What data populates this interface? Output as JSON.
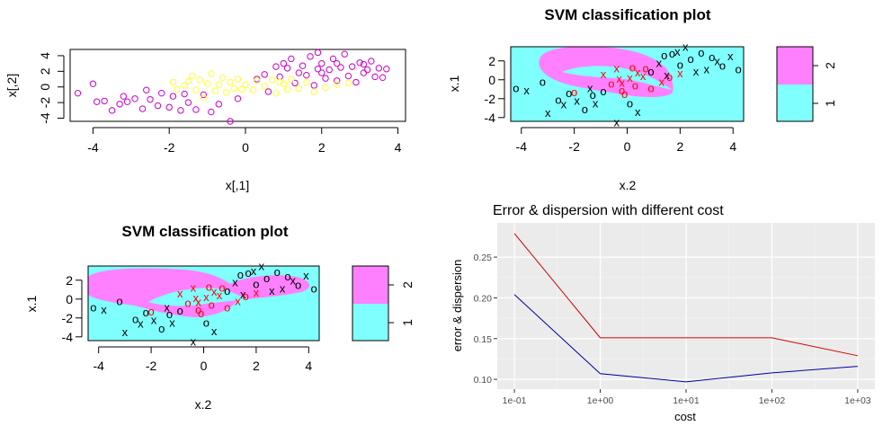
{
  "chart_data": [
    {
      "type": "scatter",
      "xlabel": "x[,1]",
      "ylabel": "x[,2]",
      "xlim": [
        -4.6,
        4.2
      ],
      "ylim": [
        -4.4,
        4.8
      ],
      "xticks": [
        "-4",
        "-2",
        "0",
        "2",
        "4"
      ],
      "yticks": [
        "-4",
        "-2",
        "0",
        "2",
        "4"
      ],
      "colors": {
        "class_1": "#cc00cc",
        "class_2": "#ffff33"
      },
      "series": [
        {
          "name": "",
          "marker": "circle",
          "color": "#cc00cc",
          "points": [
            [
              -4.4,
              -0.8
            ],
            [
              -4.0,
              0.4
            ],
            [
              -3.7,
              -1.8
            ],
            [
              -3.5,
              -3.0
            ],
            [
              -3.3,
              -2.2
            ],
            [
              -3.1,
              -1.9
            ],
            [
              -2.9,
              -1.5
            ],
            [
              -2.7,
              -2.8
            ],
            [
              -2.5,
              -1.6
            ],
            [
              -2.3,
              -2.4
            ],
            [
              -2.2,
              -0.8
            ],
            [
              -2.0,
              -2.6
            ],
            [
              -1.9,
              -1.2
            ],
            [
              -1.7,
              -3.0
            ],
            [
              -1.5,
              -2.0
            ],
            [
              -1.3,
              -2.9
            ],
            [
              -1.1,
              -1.0
            ],
            [
              -0.9,
              -3.2
            ],
            [
              -0.7,
              -2.2
            ],
            [
              -0.4,
              -4.4
            ],
            [
              -0.2,
              -1.5
            ],
            [
              -3.9,
              -1.9
            ],
            [
              -3.2,
              -1.2
            ],
            [
              -2.6,
              -0.4
            ],
            [
              -1.6,
              -0.9
            ],
            [
              0.6,
              -0.6
            ],
            [
              0.9,
              1.3
            ],
            [
              1.1,
              2.4
            ],
            [
              1.2,
              3.6
            ],
            [
              1.3,
              0.5
            ],
            [
              1.5,
              2.7
            ],
            [
              1.6,
              1.5
            ],
            [
              1.7,
              3.9
            ],
            [
              1.8,
              0.2
            ],
            [
              1.9,
              2.3
            ],
            [
              2.0,
              3.0
            ],
            [
              2.1,
              1.1
            ],
            [
              2.2,
              2.2
            ],
            [
              2.3,
              3.6
            ],
            [
              2.4,
              0.8
            ],
            [
              2.5,
              2.5
            ],
            [
              2.6,
              4.2
            ],
            [
              2.7,
              1.4
            ],
            [
              2.8,
              2.6
            ],
            [
              2.9,
              0.6
            ],
            [
              3.0,
              3.1
            ],
            [
              3.1,
              1.8
            ],
            [
              3.2,
              2.2
            ],
            [
              3.3,
              3.3
            ],
            [
              3.4,
              1.3
            ],
            [
              3.5,
              2.4
            ],
            [
              3.6,
              1.2
            ],
            [
              3.7,
              2.3
            ],
            [
              1.0,
              3.0
            ],
            [
              1.4,
              1.8
            ],
            [
              2.0,
              1.8
            ],
            [
              0.3,
              1.0
            ],
            [
              0.8,
              2.6
            ],
            [
              1.9,
              4.4
            ],
            [
              2.4,
              3.0
            ],
            [
              3.1,
              2.9
            ],
            [
              0.5,
              1.6
            ]
          ]
        },
        {
          "name": "",
          "marker": "circle",
          "color": "#ffff33",
          "points": [
            [
              -1.9,
              0.6
            ],
            [
              -1.8,
              -0.3
            ],
            [
              -1.6,
              0.2
            ],
            [
              -1.4,
              1.4
            ],
            [
              -1.3,
              -0.4
            ],
            [
              -1.2,
              0.9
            ],
            [
              -1.1,
              -1.4
            ],
            [
              -1.0,
              0.4
            ],
            [
              -0.9,
              1.7
            ],
            [
              -0.8,
              -0.5
            ],
            [
              -0.7,
              0.3
            ],
            [
              -0.6,
              1.2
            ],
            [
              -0.5,
              -0.7
            ],
            [
              -0.4,
              0.6
            ],
            [
              -0.3,
              -0.2
            ],
            [
              -0.2,
              1.0
            ],
            [
              0.0,
              0.3
            ],
            [
              0.2,
              -0.4
            ],
            [
              0.3,
              0.8
            ],
            [
              0.5,
              0.1
            ],
            [
              0.7,
              0.9
            ],
            [
              0.8,
              -0.8
            ],
            [
              1.0,
              0.4
            ],
            [
              1.1,
              -0.3
            ],
            [
              1.2,
              1.0
            ],
            [
              1.4,
              -0.2
            ],
            [
              1.6,
              0.6
            ],
            [
              1.8,
              -0.6
            ],
            [
              2.1,
              -0.1
            ],
            [
              2.4,
              0.3
            ],
            [
              2.7,
              0.5
            ],
            [
              -1.5,
              0.7
            ],
            [
              -0.1,
              -0.3
            ],
            [
              0.9,
              0.6
            ]
          ]
        }
      ]
    },
    {
      "type": "scatter",
      "title": "SVM classification plot",
      "xlabel": "x.2",
      "ylabel": "x.1",
      "xlim": [
        -4.4,
        4.4
      ],
      "ylim": [
        -4.4,
        3.5
      ],
      "xticks": [
        "-4",
        "-2",
        "0",
        "2",
        "4"
      ],
      "yticks": [
        "-4",
        "-2",
        "0",
        "2"
      ],
      "legend": {
        "placement": "right",
        "levels": [
          "2",
          "1"
        ],
        "colors": {
          "2": "#ff80ff",
          "1": "#80ffff"
        }
      },
      "colors": {
        "support_vector": "#ff0000",
        "data": "#000000"
      },
      "points": [
        [
          -4.2,
          -0.9
        ],
        [
          -3.8,
          -1.1
        ],
        [
          -3.2,
          -0.2
        ],
        [
          -3.0,
          -3.5
        ],
        [
          -2.6,
          -2.1
        ],
        [
          -2.4,
          -2.6
        ],
        [
          -2.2,
          -1.4
        ],
        [
          -1.9,
          -2.2
        ],
        [
          -1.6,
          -3.1
        ],
        [
          -1.4,
          -0.9
        ],
        [
          -1.3,
          -1.6
        ],
        [
          -1.2,
          -2.5
        ],
        [
          -0.9,
          -1.2
        ],
        [
          -0.4,
          -4.5
        ],
        [
          0.1,
          -2.5
        ],
        [
          0.4,
          -3.4
        ],
        [
          0.9,
          0.9
        ],
        [
          1.2,
          1.8
        ],
        [
          1.4,
          2.6
        ],
        [
          1.5,
          0.5
        ],
        [
          1.7,
          2.8
        ],
        [
          1.9,
          3.0
        ],
        [
          2.0,
          1.6
        ],
        [
          2.2,
          3.5
        ],
        [
          2.4,
          2.2
        ],
        [
          2.6,
          0.9
        ],
        [
          2.8,
          2.9
        ],
        [
          3.0,
          1.1
        ],
        [
          3.2,
          2.4
        ],
        [
          3.4,
          2.0
        ],
        [
          3.6,
          1.5
        ],
        [
          3.9,
          2.5
        ],
        [
          4.2,
          1.1
        ]
      ],
      "support_vectors": [
        [
          -2.0,
          -1.3
        ],
        [
          -0.9,
          0.6
        ],
        [
          -0.6,
          -0.4
        ],
        [
          -0.3,
          0.1
        ],
        [
          -0.2,
          -1.1
        ],
        [
          0.1,
          0.2
        ],
        [
          0.3,
          -0.6
        ],
        [
          0.4,
          0.8
        ],
        [
          -0.1,
          -1.5
        ],
        [
          0.6,
          0.4
        ],
        [
          0.9,
          -0.9
        ],
        [
          1.3,
          -0.2
        ],
        [
          1.6,
          0.3
        ],
        [
          2.0,
          0.7
        ],
        [
          0.7,
          1.2
        ],
        [
          -0.2,
          -0.3
        ],
        [
          0.2,
          1.3
        ],
        [
          -0.4,
          1.2
        ]
      ]
    },
    {
      "type": "scatter",
      "title": "SVM classification plot",
      "xlabel": "x.2",
      "ylabel": "x.1",
      "xlim": [
        -4.4,
        4.4
      ],
      "ylim": [
        -4.4,
        3.5
      ],
      "xticks": [
        "-4",
        "-2",
        "0",
        "2",
        "4"
      ],
      "yticks": [
        "-4",
        "-2",
        "0",
        "2"
      ],
      "legend": {
        "placement": "right",
        "levels": [
          "2",
          "1"
        ],
        "colors": {
          "2": "#ff80ff",
          "1": "#80ffff"
        }
      },
      "colors": {
        "support_vector": "#ff0000",
        "data": "#000000"
      },
      "points": [
        [
          -4.2,
          -0.9
        ],
        [
          -3.8,
          -1.1
        ],
        [
          -3.2,
          -0.2
        ],
        [
          -3.0,
          -3.5
        ],
        [
          -2.6,
          -2.1
        ],
        [
          -2.4,
          -2.6
        ],
        [
          -2.2,
          -1.4
        ],
        [
          -1.9,
          -2.2
        ],
        [
          -1.6,
          -3.1
        ],
        [
          -1.4,
          -0.9
        ],
        [
          -1.3,
          -1.6
        ],
        [
          -1.2,
          -2.5
        ],
        [
          -0.9,
          -1.2
        ],
        [
          -0.4,
          -4.5
        ],
        [
          0.1,
          -2.5
        ],
        [
          0.4,
          -3.4
        ],
        [
          0.9,
          0.9
        ],
        [
          1.2,
          1.8
        ],
        [
          1.4,
          2.6
        ],
        [
          1.5,
          0.5
        ],
        [
          1.7,
          2.8
        ],
        [
          1.9,
          3.0
        ],
        [
          2.0,
          1.6
        ],
        [
          2.2,
          3.5
        ],
        [
          2.4,
          2.2
        ],
        [
          2.6,
          0.9
        ],
        [
          2.8,
          2.9
        ],
        [
          3.0,
          1.1
        ],
        [
          3.2,
          2.4
        ],
        [
          3.4,
          2.0
        ],
        [
          3.6,
          1.5
        ],
        [
          3.9,
          2.5
        ],
        [
          4.2,
          1.1
        ]
      ],
      "support_vectors": [
        [
          -2.0,
          -1.3
        ],
        [
          -0.9,
          0.6
        ],
        [
          -0.6,
          -0.4
        ],
        [
          -0.3,
          0.1
        ],
        [
          -0.2,
          -1.1
        ],
        [
          0.1,
          0.2
        ],
        [
          0.3,
          -0.6
        ],
        [
          0.4,
          0.8
        ],
        [
          -0.1,
          -1.5
        ],
        [
          0.6,
          0.4
        ],
        [
          0.9,
          -0.9
        ],
        [
          1.3,
          -0.2
        ],
        [
          1.6,
          0.3
        ],
        [
          2.0,
          0.7
        ],
        [
          0.7,
          1.2
        ],
        [
          -0.2,
          -0.3
        ],
        [
          0.2,
          1.3
        ],
        [
          -0.4,
          1.2
        ]
      ]
    },
    {
      "type": "line",
      "title": "Error & dispersion with different cost",
      "xlabel": "cost",
      "ylabel": "error & dispersion",
      "x": [
        0.1,
        1,
        10,
        100,
        1000
      ],
      "xticks": [
        "1e-01",
        "1e+00",
        "1e+01",
        "1e+02",
        "1e+03"
      ],
      "yticks": [
        "0.10",
        "0.15",
        "0.20",
        "0.25"
      ],
      "ylim": [
        0.088,
        0.292
      ],
      "log_x": true,
      "grid": true,
      "series": [
        {
          "name": "",
          "color": "#cc0000",
          "values": [
            0.279,
            0.151,
            0.151,
            0.151,
            0.129
          ]
        },
        {
          "name": "",
          "color": "#000099",
          "values": [
            0.204,
            0.107,
            0.097,
            0.108,
            0.116
          ]
        }
      ]
    }
  ]
}
